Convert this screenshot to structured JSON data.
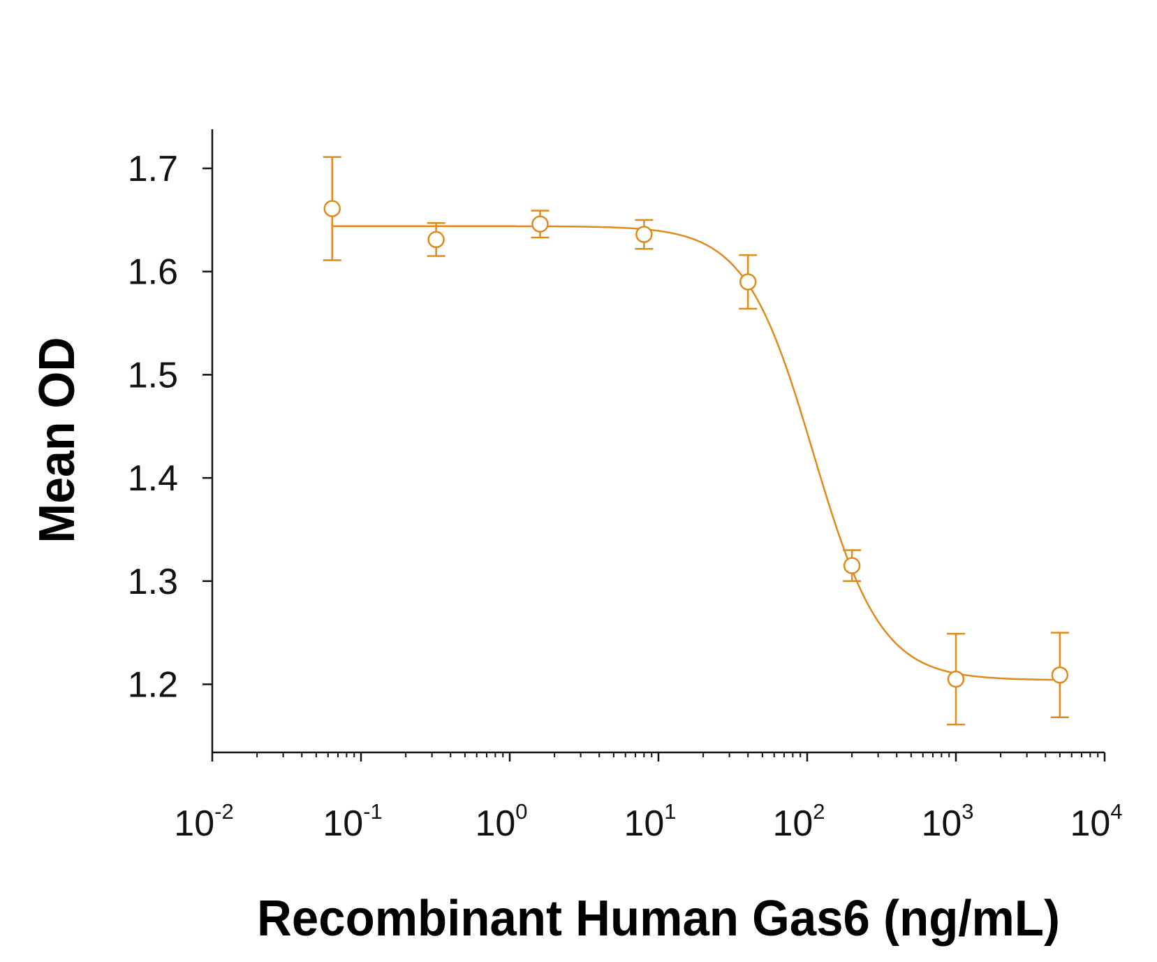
{
  "chart_data": {
    "type": "scatter",
    "title": "",
    "xlabel": "Recombinant Human Gas6 (ng/mL)",
    "ylabel": "Mean OD",
    "x_scale": "log",
    "xlim": [
      0.01,
      10000
    ],
    "ylim": [
      1.135,
      1.74
    ],
    "x_ticks": [
      {
        "value": 0.01,
        "base": "10",
        "exp": "-2"
      },
      {
        "value": 0.1,
        "base": "10",
        "exp": "-1"
      },
      {
        "value": 1,
        "base": "10",
        "exp": "0"
      },
      {
        "value": 10,
        "base": "10",
        "exp": "1"
      },
      {
        "value": 100,
        "base": "10",
        "exp": "2"
      },
      {
        "value": 1000,
        "base": "10",
        "exp": "3"
      },
      {
        "value": 10000,
        "base": "10",
        "exp": "4"
      }
    ],
    "y_ticks": [
      {
        "value": 1.2,
        "label": "1.2"
      },
      {
        "value": 1.3,
        "label": "1.3"
      },
      {
        "value": 1.4,
        "label": "1.4"
      },
      {
        "value": 1.5,
        "label": "1.5"
      },
      {
        "value": 1.6,
        "label": "1.6"
      },
      {
        "value": 1.7,
        "label": "1.7"
      }
    ],
    "color": "#E08A1E",
    "grid": false,
    "legend": "none",
    "points": [
      {
        "x": 0.064,
        "y": 1.661,
        "err": 0.05
      },
      {
        "x": 0.32,
        "y": 1.631,
        "err": 0.016
      },
      {
        "x": 1.6,
        "y": 1.646,
        "err": 0.013
      },
      {
        "x": 8,
        "y": 1.636,
        "err": 0.014
      },
      {
        "x": 40,
        "y": 1.59,
        "err": 0.026
      },
      {
        "x": 200,
        "y": 1.315,
        "err": 0.015
      },
      {
        "x": 1000,
        "y": 1.205,
        "err": 0.044
      },
      {
        "x": 5000,
        "y": 1.209,
        "err": 0.041
      }
    ],
    "fit": {
      "model": "4PL",
      "top": 1.644,
      "bottom": 1.204,
      "ec50": 110,
      "hill": 1.9
    }
  }
}
